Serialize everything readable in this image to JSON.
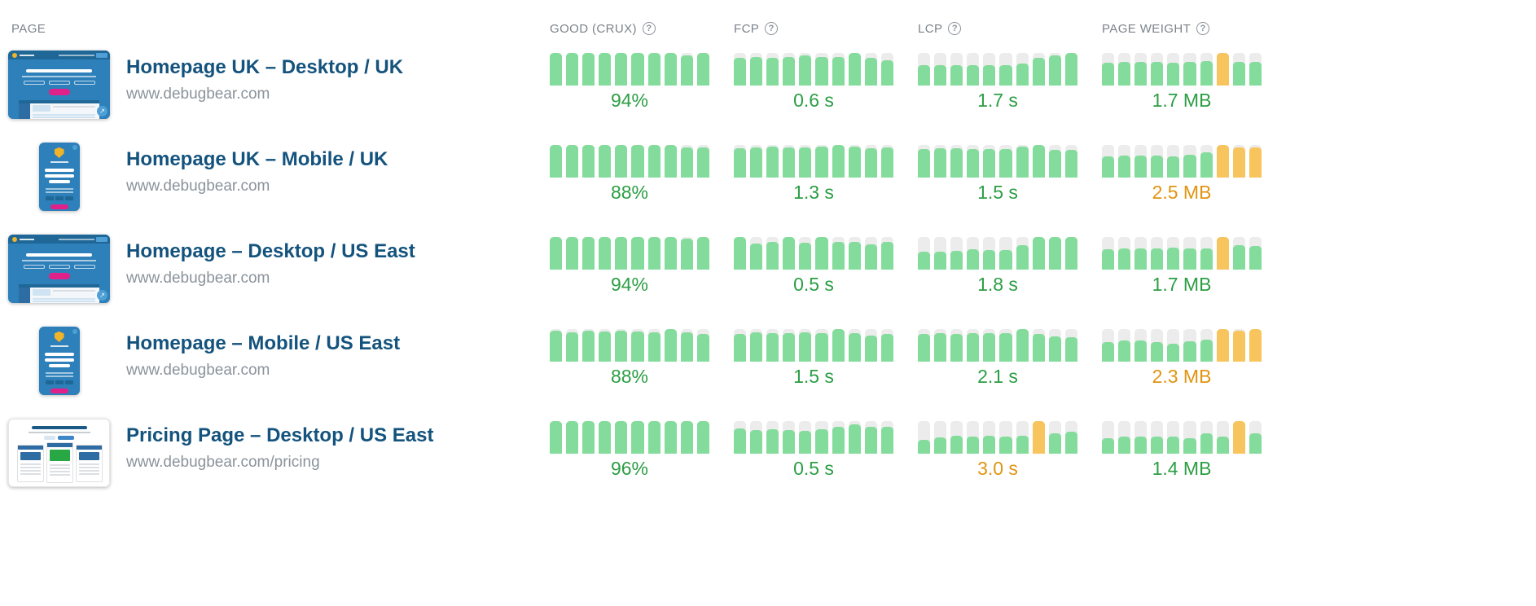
{
  "table": {
    "page_column_label": "PAGE",
    "metric_columns": [
      {
        "id": "good",
        "label": "GOOD (CRUX)",
        "help_icon": "question-mark-circle-icon"
      },
      {
        "id": "fcp",
        "label": "FCP",
        "help_icon": "question-mark-circle-icon"
      },
      {
        "id": "lcp",
        "label": "LCP",
        "help_icon": "question-mark-circle-icon"
      },
      {
        "id": "pw",
        "label": "PAGE WEIGHT",
        "help_icon": "question-mark-circle-icon"
      }
    ],
    "rows": [
      {
        "title": "Homepage UK – Desktop / UK",
        "url": "www.debugbear.com",
        "thumbnail": "desktop-site-screenshot",
        "metrics": {
          "good": {
            "value": "94%",
            "status": "good",
            "bars": [
              100,
              100,
              100,
              100,
              100,
              100,
              100,
              100,
              92,
              100
            ],
            "warn_bars": []
          },
          "fcp": {
            "value": "0.6 s",
            "status": "good",
            "bars": [
              85,
              88,
              85,
              88,
              92,
              87,
              87,
              100,
              85,
              78
            ],
            "warn_bars": []
          },
          "lcp": {
            "value": "1.7 s",
            "status": "good",
            "bars": [
              62,
              62,
              63,
              62,
              62,
              63,
              68,
              85,
              93,
              100
            ],
            "warn_bars": []
          },
          "pw": {
            "value": "1.7 MB",
            "status": "good",
            "bars": [
              70,
              73,
              73,
              72,
              71,
              72,
              74,
              100,
              73,
              73
            ],
            "warn_bars": [
              7
            ]
          }
        }
      },
      {
        "title": "Homepage UK – Mobile / UK",
        "url": "www.debugbear.com",
        "thumbnail": "mobile-site-screenshot",
        "metrics": {
          "good": {
            "value": "88%",
            "status": "good",
            "bars": [
              100,
              100,
              100,
              100,
              100,
              100,
              100,
              100,
              93,
              93
            ],
            "warn_bars": []
          },
          "fcp": {
            "value": "1.3 s",
            "status": "good",
            "bars": [
              90,
              93,
              95,
              93,
              93,
              95,
              100,
              95,
              90,
              93
            ],
            "warn_bars": []
          },
          "lcp": {
            "value": "1.5 s",
            "status": "good",
            "bars": [
              88,
              90,
              90,
              88,
              88,
              88,
              95,
              100,
              85,
              85
            ],
            "warn_bars": []
          },
          "pw": {
            "value": "2.5 MB",
            "status": "warn",
            "bars": [
              65,
              68,
              68,
              68,
              65,
              70,
              78,
              100,
              93,
              93
            ],
            "warn_bars": [
              7,
              8,
              9
            ]
          }
        }
      },
      {
        "title": "Homepage – Desktop / US East",
        "url": "www.debugbear.com",
        "thumbnail": "desktop-site-screenshot",
        "metrics": {
          "good": {
            "value": "94%",
            "status": "good",
            "bars": [
              100,
              100,
              100,
              100,
              100,
              100,
              100,
              100,
              94,
              100
            ],
            "warn_bars": []
          },
          "fcp": {
            "value": "0.5 s",
            "status": "good",
            "bars": [
              100,
              80,
              85,
              100,
              82,
              100,
              85,
              85,
              78,
              85
            ],
            "warn_bars": []
          },
          "lcp": {
            "value": "1.8 s",
            "status": "good",
            "bars": [
              55,
              55,
              58,
              62,
              60,
              60,
              75,
              100,
              100,
              100
            ],
            "warn_bars": []
          },
          "pw": {
            "value": "1.7 MB",
            "status": "good",
            "bars": [
              62,
              66,
              66,
              66,
              68,
              66,
              66,
              100,
              76,
              72
            ],
            "warn_bars": [
              7
            ]
          }
        }
      },
      {
        "title": "Homepage – Mobile / US East",
        "url": "www.debugbear.com",
        "thumbnail": "mobile-site-screenshot",
        "metrics": {
          "good": {
            "value": "88%",
            "status": "good",
            "bars": [
              95,
              91,
              95,
              93,
              95,
              93,
              91,
              100,
              91,
              86
            ],
            "warn_bars": []
          },
          "fcp": {
            "value": "1.5 s",
            "status": "good",
            "bars": [
              85,
              90,
              88,
              88,
              90,
              88,
              100,
              88,
              80,
              85
            ],
            "warn_bars": []
          },
          "lcp": {
            "value": "2.1 s",
            "status": "good",
            "bars": [
              85,
              88,
              85,
              88,
              88,
              88,
              100,
              85,
              78,
              75
            ],
            "warn_bars": []
          },
          "pw": {
            "value": "2.3 MB",
            "status": "warn",
            "bars": [
              60,
              65,
              65,
              60,
              56,
              62,
              68,
              100,
              95,
              100
            ],
            "warn_bars": [
              7,
              8,
              9
            ]
          }
        }
      },
      {
        "title": "Pricing Page – Desktop / US East",
        "url": "www.debugbear.com/pricing",
        "thumbnail": "pricing-page-screenshot",
        "metrics": {
          "good": {
            "value": "96%",
            "status": "good",
            "bars": [
              100,
              100,
              100,
              100,
              100,
              100,
              100,
              100,
              100,
              100
            ],
            "warn_bars": []
          },
          "fcp": {
            "value": "0.5 s",
            "status": "good",
            "bars": [
              78,
              72,
              75,
              72,
              70,
              75,
              82,
              90,
              82,
              82
            ],
            "warn_bars": []
          },
          "lcp": {
            "value": "3.0 s",
            "status": "warn",
            "bars": [
              42,
              50,
              55,
              52,
              55,
              52,
              55,
              100,
              62,
              68
            ],
            "warn_bars": [
              7
            ]
          },
          "pw": {
            "value": "1.4 MB",
            "status": "good",
            "bars": [
              48,
              52,
              52,
              52,
              52,
              48,
              62,
              52,
              100,
              62
            ],
            "warn_bars": [
              8
            ]
          }
        }
      }
    ]
  },
  "colors": {
    "bar_good": "#83dc9b",
    "bar_warn": "#f7c45e",
    "bar_track": "#ececec",
    "value_good": "#2b9e44",
    "value_warn": "#e0940f",
    "title_blue": "#14537d",
    "muted_gray": "#8a939b",
    "thumb_blue": "#2e80ba",
    "thumb_dark_blue": "#1f6796",
    "thumb_pink": "#e0218a",
    "thumb_gold": "#f0b429",
    "thumb_green": "#27a844"
  },
  "help_symbol": "?"
}
